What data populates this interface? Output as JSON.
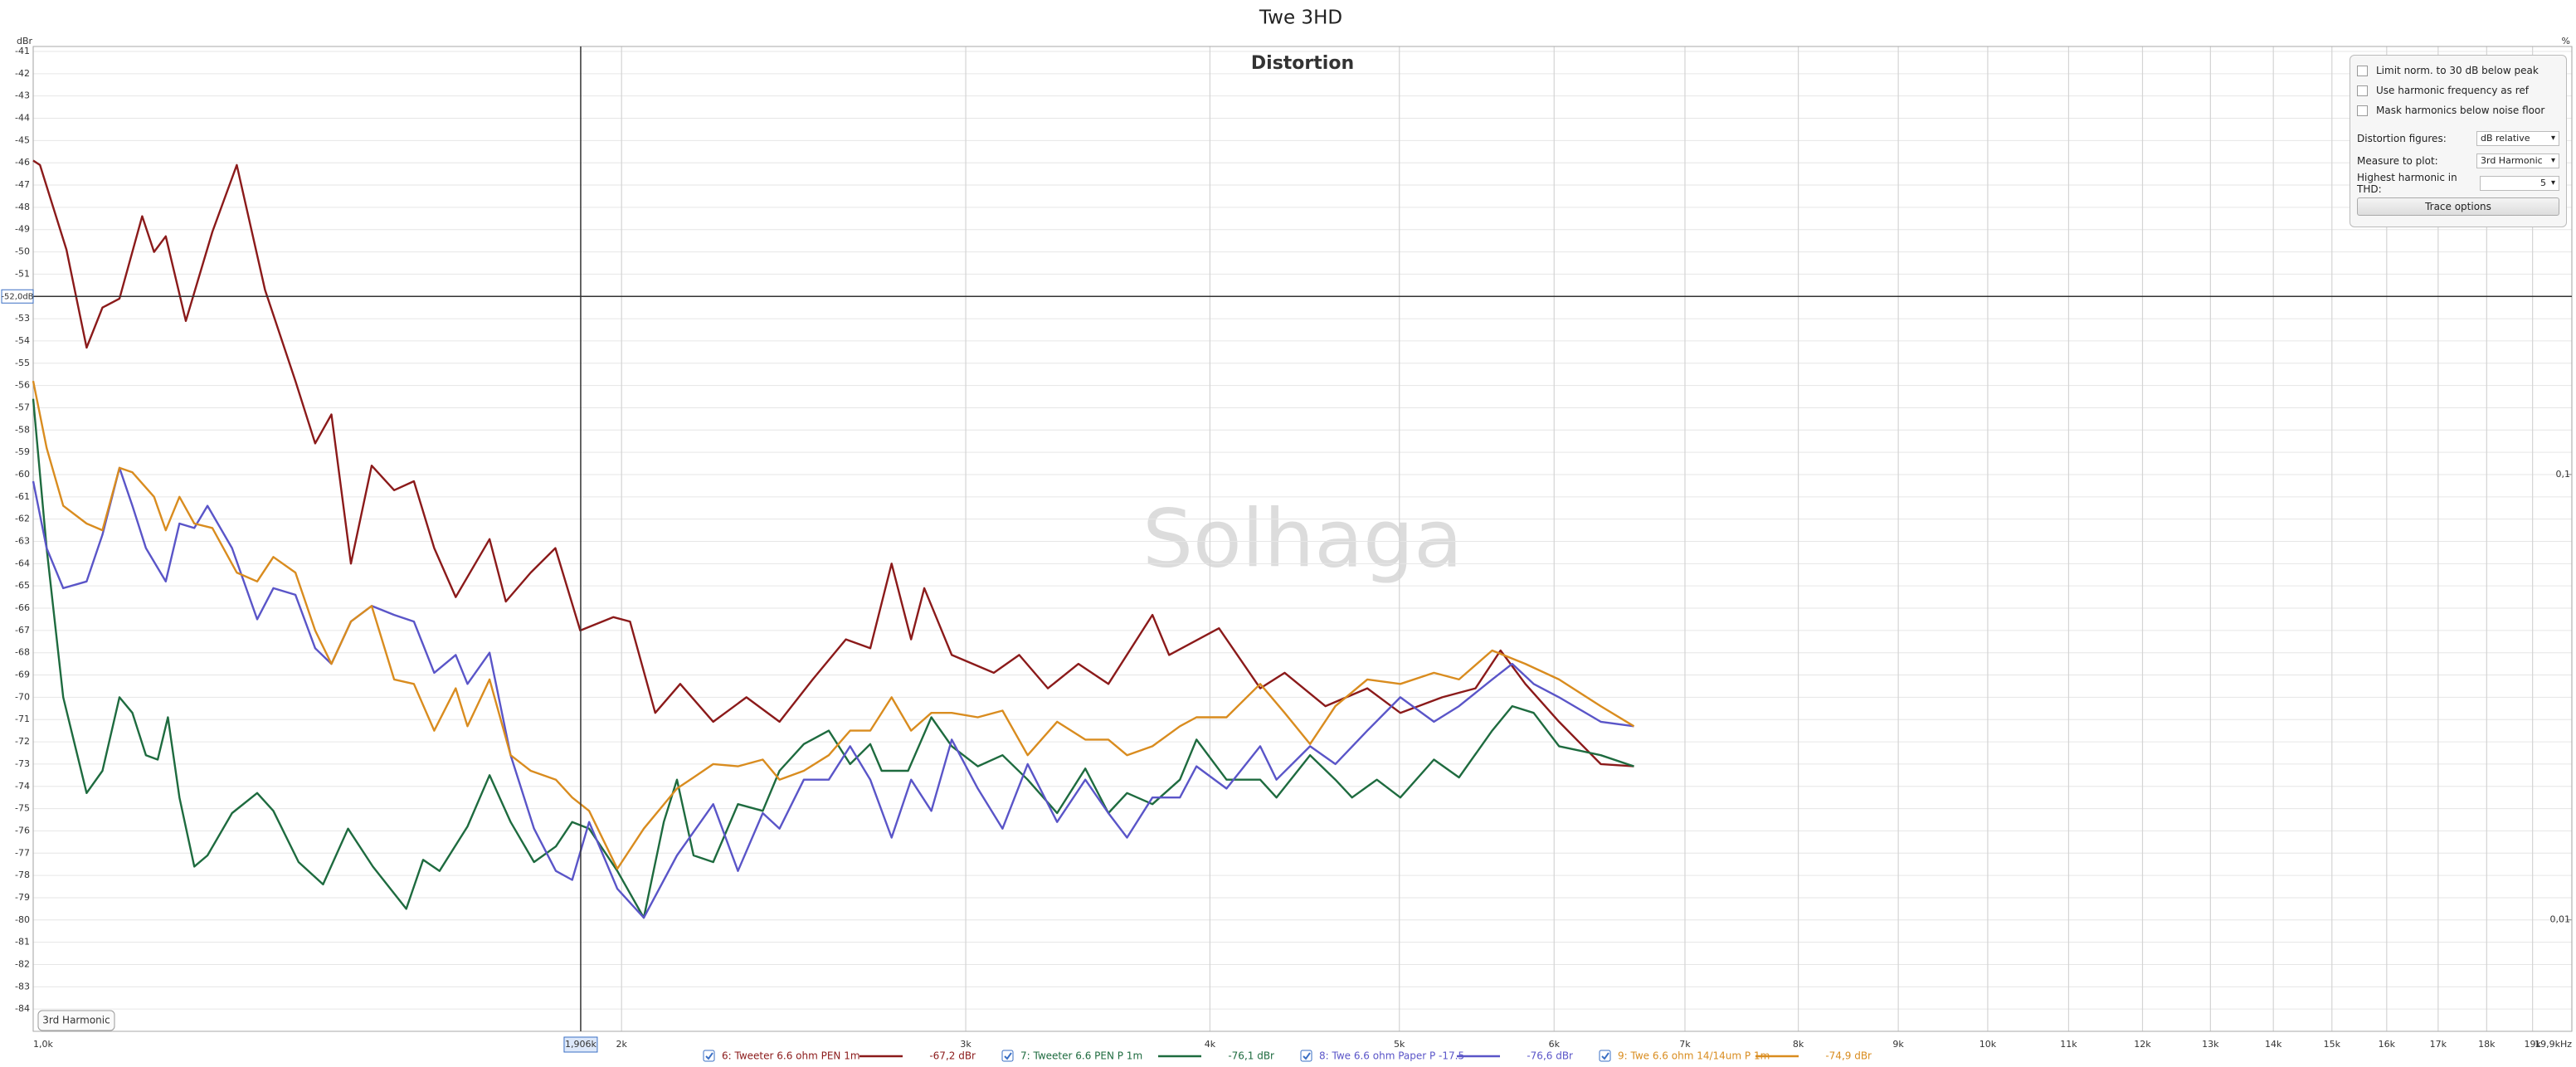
{
  "chart_data": {
    "type": "line",
    "title": "Twe 3HD",
    "subtitle": "Distortion",
    "watermark": "Solhaga",
    "badge": "3rd Harmonic",
    "ylabel": "dBr",
    "y2label": "%",
    "xscale": "log",
    "xlim": [
      1000,
      19900
    ],
    "xticks": [
      {
        "value": 1000,
        "label": "1,0k"
      },
      {
        "value": 2000,
        "label": "2k"
      },
      {
        "value": 3000,
        "label": "3k"
      },
      {
        "value": 4000,
        "label": "4k"
      },
      {
        "value": 5000,
        "label": "5k"
      },
      {
        "value": 6000,
        "label": "6k"
      },
      {
        "value": 7000,
        "label": "7k"
      },
      {
        "value": 8000,
        "label": "8k"
      },
      {
        "value": 9000,
        "label": "9k"
      },
      {
        "value": 10000,
        "label": "10k"
      },
      {
        "value": 11000,
        "label": "11k"
      },
      {
        "value": 12000,
        "label": "12k"
      },
      {
        "value": 13000,
        "label": "13k"
      },
      {
        "value": 14000,
        "label": "14k"
      },
      {
        "value": 15000,
        "label": "15k"
      },
      {
        "value": 16000,
        "label": "16k"
      },
      {
        "value": 17000,
        "label": "17k"
      },
      {
        "value": 18000,
        "label": "18k"
      },
      {
        "value": 19000,
        "label": "19k"
      },
      {
        "value": 19900,
        "label": "19,9kHz"
      }
    ],
    "ylim": [
      -85,
      -41
    ],
    "yticks": [
      -41,
      -42,
      -43,
      -44,
      -45,
      -46,
      -47,
      -48,
      -49,
      -50,
      -51,
      -52,
      -53,
      -54,
      -55,
      -56,
      -57,
      -58,
      -59,
      -60,
      -61,
      -62,
      -63,
      -64,
      -65,
      -66,
      -67,
      -68,
      -69,
      -70,
      -71,
      -72,
      -73,
      -74,
      -75,
      -76,
      -77,
      -78,
      -79,
      -80,
      -81,
      -82,
      -83,
      -84
    ],
    "y2scale": "log",
    "y2lim": [
      0.00562,
      0.891
    ],
    "y2ticks": [
      {
        "value": 0.1,
        "label": "0,1"
      },
      {
        "value": 0.01,
        "label": "0,01"
      }
    ],
    "grid": true,
    "cursor": {
      "x": 1906,
      "x_label": "1,906k",
      "y": -52,
      "y_label": "-52,0dB"
    },
    "series": [
      {
        "name": "6: Tweeter 6.6 ohm PEN 1m",
        "color": "#8b1a1a",
        "readout": "-67,2 dBr",
        "x": [
          1000,
          1008,
          1040,
          1065,
          1085,
          1107,
          1137,
          1153,
          1169,
          1197,
          1235,
          1271,
          1314,
          1362,
          1394,
          1421,
          1454,
          1490,
          1530,
          1566,
          1604,
          1645,
          1712,
          1745,
          1797,
          1850,
          1905,
          1981,
          2020,
          2081,
          2143,
          2228,
          2317,
          2409,
          2505,
          2605,
          2681,
          2749,
          2813,
          2857,
          2951,
          3101,
          3195,
          3305,
          3426,
          3549,
          3738,
          3812,
          4043,
          4244,
          4368,
          4583,
          4815,
          5006,
          5259,
          5469,
          5633,
          5800,
          6035,
          6339,
          6592
        ],
        "values": [
          -45.9,
          -46.1,
          -49.9,
          -54.3,
          -52.5,
          -52.1,
          -48.4,
          -50.0,
          -49.3,
          -53.1,
          -49.1,
          -46.1,
          -51.7,
          -55.8,
          -58.6,
          -57.3,
          -64.0,
          -59.6,
          -60.7,
          -60.3,
          -63.3,
          -65.5,
          -62.9,
          -65.7,
          -64.4,
          -63.3,
          -67.0,
          -66.4,
          -66.6,
          -70.7,
          -69.4,
          -71.1,
          -70.0,
          -71.1,
          -69.2,
          -67.4,
          -67.8,
          -64.0,
          -67.4,
          -65.1,
          -68.1,
          -68.9,
          -68.1,
          -69.6,
          -68.5,
          -69.4,
          -66.3,
          -68.1,
          -66.9,
          -69.6,
          -68.9,
          -70.4,
          -69.6,
          -70.7,
          -70.0,
          -69.6,
          -67.9,
          -69.4,
          -71.1,
          -73.0,
          -73.1
        ]
      },
      {
        "name": "7: Tweeter 6.6 PEN P 1m",
        "color": "#1e6b3f",
        "readout": "-76,1 dBr",
        "x": [
          1000,
          1016,
          1036,
          1065,
          1085,
          1107,
          1124,
          1142,
          1158,
          1172,
          1188,
          1209,
          1228,
          1264,
          1302,
          1327,
          1367,
          1407,
          1449,
          1492,
          1552,
          1583,
          1614,
          1668,
          1712,
          1755,
          1804,
          1851,
          1887,
          1925,
          1990,
          2053,
          2102,
          2135,
          2177,
          2228,
          2294,
          2362,
          2409,
          2479,
          2553,
          2618,
          2681,
          2717,
          2803,
          2881,
          2951,
          3043,
          3133,
          3227,
          3341,
          3454,
          3549,
          3628,
          3738,
          3861,
          3937,
          4079,
          4244,
          4326,
          4501,
          4637,
          4729,
          4869,
          5006,
          5208,
          5364,
          5578,
          5711,
          5857,
          6035,
          6339,
          6592
        ],
        "values": [
          -56.6,
          -63.3,
          -70.0,
          -74.3,
          -73.3,
          -70.0,
          -70.7,
          -72.6,
          -72.8,
          -70.9,
          -74.5,
          -77.6,
          -77.1,
          -75.2,
          -74.3,
          -75.1,
          -77.4,
          -78.4,
          -75.9,
          -77.6,
          -79.5,
          -77.3,
          -77.8,
          -75.8,
          -73.5,
          -75.6,
          -77.4,
          -76.7,
          -75.6,
          -75.9,
          -77.8,
          -79.9,
          -75.6,
          -73.7,
          -77.1,
          -77.4,
          -74.8,
          -75.1,
          -73.3,
          -72.1,
          -71.5,
          -73.0,
          -72.1,
          -73.3,
          -73.3,
          -70.9,
          -72.2,
          -73.1,
          -72.6,
          -73.7,
          -75.2,
          -73.2,
          -75.2,
          -74.3,
          -74.8,
          -73.7,
          -71.9,
          -73.7,
          -73.7,
          -74.5,
          -72.6,
          -73.7,
          -74.5,
          -73.7,
          -74.5,
          -72.8,
          -73.6,
          -71.5,
          -70.4,
          -70.7,
          -72.2,
          -72.6,
          -73.1
        ]
      },
      {
        "name": "8: Twe 6.6 ohm Paper P -17.5",
        "color": "#5a55c8",
        "readout": "-76,6 dBr",
        "x": [
          1000,
          1016,
          1036,
          1065,
          1085,
          1107,
          1124,
          1142,
          1169,
          1188,
          1209,
          1228,
          1264,
          1302,
          1327,
          1362,
          1394,
          1421,
          1454,
          1490,
          1530,
          1566,
          1604,
          1645,
          1668,
          1712,
          1755,
          1804,
          1851,
          1887,
          1925,
          1990,
          2053,
          2135,
          2228,
          2294,
          2362,
          2409,
          2479,
          2553,
          2618,
          2681,
          2749,
          2813,
          2881,
          2951,
          3043,
          3133,
          3227,
          3341,
          3454,
          3549,
          3628,
          3738,
          3861,
          3937,
          4079,
          4244,
          4326,
          4501,
          4637,
          4815,
          5006,
          5208,
          5364,
          5578,
          5711,
          5857,
          6035,
          6339,
          6592
        ],
        "values": [
          -60.3,
          -63.3,
          -65.1,
          -64.8,
          -62.7,
          -59.7,
          -61.4,
          -63.3,
          -64.8,
          -62.2,
          -62.4,
          -61.4,
          -63.3,
          -66.5,
          -65.1,
          -65.4,
          -67.8,
          -68.5,
          -66.6,
          -65.9,
          -66.3,
          -66.6,
          -68.9,
          -68.1,
          -69.4,
          -68.0,
          -72.6,
          -75.9,
          -77.8,
          -78.2,
          -75.6,
          -78.6,
          -79.9,
          -77.1,
          -74.8,
          -77.8,
          -75.2,
          -75.9,
          -73.7,
          -73.7,
          -72.2,
          -73.7,
          -76.3,
          -73.7,
          -75.1,
          -71.9,
          -74.1,
          -75.9,
          -73.0,
          -75.6,
          -73.7,
          -75.2,
          -76.3,
          -74.5,
          -74.5,
          -73.1,
          -74.1,
          -72.2,
          -73.7,
          -72.2,
          -73.0,
          -71.5,
          -70.0,
          -71.1,
          -70.4,
          -69.2,
          -68.5,
          -69.4,
          -70.0,
          -71.1,
          -71.3
        ]
      },
      {
        "name": "9: Twe 6.6 ohm 14/14um P 1m",
        "color": "#d98c1f",
        "readout": "-74,9 dBr",
        "x": [
          1000,
          1016,
          1036,
          1065,
          1085,
          1107,
          1124,
          1153,
          1169,
          1188,
          1209,
          1235,
          1271,
          1302,
          1327,
          1362,
          1394,
          1421,
          1454,
          1490,
          1530,
          1566,
          1604,
          1645,
          1668,
          1712,
          1755,
          1797,
          1851,
          1887,
          1925,
          1990,
          2053,
          2135,
          2177,
          2228,
          2294,
          2362,
          2409,
          2479,
          2553,
          2618,
          2681,
          2749,
          2813,
          2881,
          2951,
          3043,
          3133,
          3227,
          3341,
          3454,
          3549,
          3628,
          3738,
          3861,
          3937,
          4079,
          4244,
          4368,
          4501,
          4637,
          4815,
          5006,
          5208,
          5364,
          5578,
          5800,
          6035,
          6339,
          6592
        ],
        "values": [
          -55.8,
          -58.8,
          -61.4,
          -62.2,
          -62.5,
          -59.7,
          -59.9,
          -61.0,
          -62.5,
          -61.0,
          -62.2,
          -62.4,
          -64.4,
          -64.8,
          -63.7,
          -64.4,
          -67.0,
          -68.5,
          -66.6,
          -65.9,
          -69.2,
          -69.4,
          -71.5,
          -69.6,
          -71.3,
          -69.2,
          -72.6,
          -73.3,
          -73.7,
          -74.5,
          -75.1,
          -77.7,
          -75.9,
          -74.1,
          -73.6,
          -73.0,
          -73.1,
          -72.8,
          -73.7,
          -73.3,
          -72.6,
          -71.5,
          -71.5,
          -70.0,
          -71.5,
          -70.7,
          -70.7,
          -70.9,
          -70.6,
          -72.6,
          -71.1,
          -71.9,
          -71.9,
          -72.6,
          -72.2,
          -71.3,
          -70.9,
          -70.9,
          -69.4,
          -70.7,
          -72.1,
          -70.4,
          -69.2,
          -69.4,
          -68.9,
          -69.2,
          -67.9,
          -68.5,
          -69.2,
          -70.4,
          -71.3
        ]
      }
    ]
  },
  "controls": {
    "checkboxes": [
      "Limit norm. to 30 dB below peak",
      "Use harmonic frequency as ref",
      "Mask harmonics below noise floor"
    ],
    "distortion_figures": {
      "label": "Distortion figures:",
      "value": "dB relative"
    },
    "measure_to_plot": {
      "label": "Measure to plot:",
      "value": "3rd Harmonic"
    },
    "highest_harmonic": {
      "label": "Highest harmonic in THD:",
      "value": "5"
    },
    "button": "Trace options"
  }
}
